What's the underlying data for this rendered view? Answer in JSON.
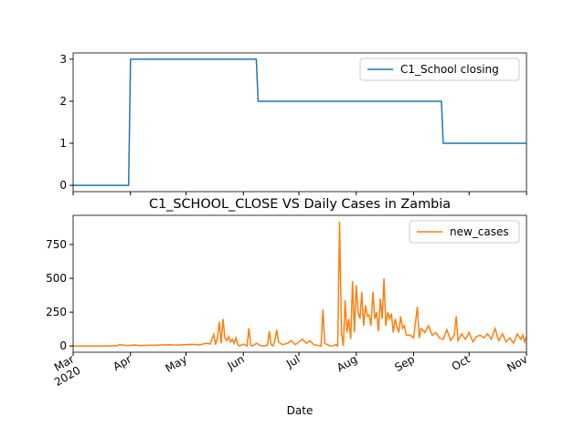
{
  "chart_data": [
    {
      "type": "line",
      "legend": "upper right",
      "series": [
        {
          "name": "C1_School closing",
          "color": "#1f77b4",
          "x": [
            0,
            30,
            31,
            99,
            100,
            199,
            200,
            245
          ],
          "values": [
            0,
            0,
            3,
            3,
            2,
            2,
            1,
            1
          ]
        }
      ],
      "xlim": [
        0,
        245
      ],
      "ylim": [
        -0.15,
        3.15
      ],
      "yticks": [
        0,
        1,
        2,
        3
      ]
    },
    {
      "type": "line",
      "title": "C1_SCHOOL_CLOSE VS Daily Cases in Zambia",
      "x_label": "Date",
      "legend": "upper right",
      "series": [
        {
          "name": "new_cases",
          "color": "#ff7f0e",
          "x": [
            0,
            17,
            18,
            19,
            22,
            24,
            25,
            27,
            30,
            33,
            36,
            40,
            44,
            48,
            52,
            56,
            60,
            64,
            68,
            72,
            74,
            76,
            77,
            78,
            79,
            80,
            81,
            82,
            83,
            84,
            85,
            86,
            87,
            88,
            89,
            90,
            92,
            94,
            95,
            96,
            97,
            99,
            102,
            105,
            106,
            107,
            108,
            109,
            110,
            111,
            113,
            116,
            118,
            120,
            122,
            124,
            126,
            128,
            130,
            132,
            134,
            135,
            136,
            138,
            140,
            142,
            143,
            144,
            145,
            146,
            147,
            148,
            149,
            150,
            151,
            152,
            153,
            154,
            155,
            156,
            157,
            158,
            159,
            160,
            161,
            162,
            163,
            164,
            165,
            166,
            167,
            168,
            169,
            170,
            171,
            172,
            173,
            174,
            175,
            176,
            177,
            178,
            179,
            180,
            182,
            184,
            186,
            187,
            188,
            190,
            192,
            194,
            196,
            198,
            200,
            202,
            204,
            206,
            207,
            208,
            210,
            212,
            214,
            216,
            218,
            220,
            222,
            224,
            226,
            228,
            230,
            232,
            234,
            236,
            238,
            240,
            242,
            243,
            244,
            245
          ],
          "values": [
            0,
            0,
            2,
            0,
            3,
            1,
            12,
            6,
            4,
            8,
            3,
            5,
            6,
            8,
            10,
            7,
            9,
            12,
            8,
            20,
            15,
            85,
            10,
            60,
            180,
            20,
            200,
            60,
            40,
            70,
            30,
            50,
            20,
            60,
            10,
            0,
            15,
            0,
            130,
            5,
            0,
            20,
            0,
            5,
            110,
            10,
            0,
            40,
            120,
            30,
            10,
            20,
            40,
            10,
            30,
            50,
            20,
            40,
            10,
            5,
            0,
            270,
            20,
            5,
            0,
            10,
            0,
            920,
            100,
            0,
            340,
            100,
            200,
            50,
            480,
            100,
            450,
            250,
            200,
            400,
            150,
            300,
            220,
            230,
            150,
            400,
            200,
            250,
            110,
            350,
            200,
            500,
            150,
            250,
            200,
            240,
            100,
            200,
            140,
            100,
            220,
            130,
            150,
            80,
            80,
            60,
            290,
            60,
            130,
            100,
            150,
            80,
            100,
            60,
            50,
            120,
            40,
            80,
            220,
            40,
            90,
            50,
            100,
            30,
            70,
            80,
            60,
            90,
            50,
            130,
            40,
            90,
            30,
            60,
            20,
            90,
            50,
            80,
            30,
            70
          ]
        }
      ],
      "xlim": [
        0,
        245
      ],
      "xticks": [
        {
          "value": 0,
          "label": "Mar\n2020"
        },
        {
          "value": 31,
          "label": "Apr"
        },
        {
          "value": 61,
          "label": "May"
        },
        {
          "value": 92,
          "label": "Jun"
        },
        {
          "value": 122,
          "label": "Jul"
        },
        {
          "value": 153,
          "label": "Aug"
        },
        {
          "value": 184,
          "label": "Sep"
        },
        {
          "value": 214,
          "label": "Oct"
        },
        {
          "value": 245,
          "label": "Nov"
        }
      ],
      "ylim": [
        -46,
        966
      ],
      "yticks": [
        0,
        250,
        500,
        750
      ]
    }
  ]
}
